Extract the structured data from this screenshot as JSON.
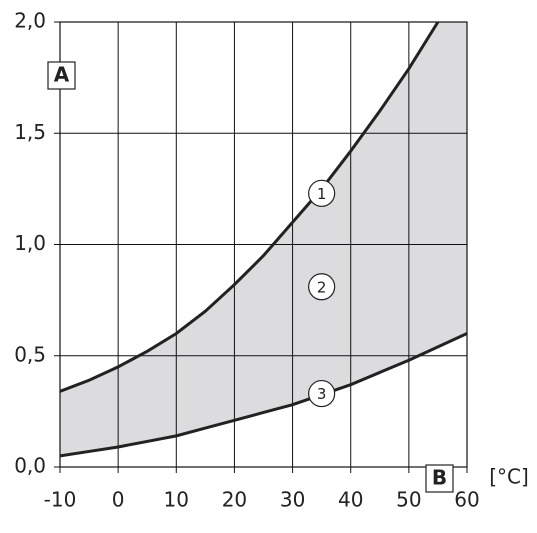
{
  "chart_data": {
    "type": "line",
    "x": [
      -10,
      -5,
      0,
      5,
      10,
      15,
      20,
      25,
      30,
      35,
      40,
      45,
      50,
      55,
      60
    ],
    "series": [
      {
        "name": "1",
        "color": "#222222",
        "values": [
          0.34,
          0.39,
          0.45,
          0.52,
          0.6,
          0.7,
          0.82,
          0.95,
          1.1,
          1.25,
          1.42,
          1.6,
          1.79,
          2.0,
          null
        ]
      },
      {
        "name": "3",
        "color": "#222222",
        "values": [
          0.05,
          0.07,
          0.09,
          0.115,
          0.14,
          0.175,
          0.21,
          0.245,
          0.28,
          0.325,
          0.37,
          0.425,
          0.48,
          0.54,
          0.6
        ]
      }
    ],
    "fill_color": "#dcdcdf",
    "xlim": [
      -10,
      60
    ],
    "ylim": [
      0,
      2
    ],
    "xticks": [
      -10,
      0,
      10,
      20,
      30,
      40,
      50,
      60
    ],
    "yticks": [
      {
        "value": 0,
        "label": "0,0"
      },
      {
        "value": 0.5,
        "label": "0,5"
      },
      {
        "value": 1,
        "label": "1,0"
      },
      {
        "value": 1.5,
        "label": "1,5"
      },
      {
        "value": 2,
        "label": "2,0"
      }
    ],
    "grid": true,
    "y_label": "A",
    "x_label": "B",
    "x_unit": "[°C]",
    "annotations": [
      {
        "text": "1",
        "x": 35,
        "y": 1.23
      },
      {
        "text": "2",
        "x": 35,
        "y": 0.81
      },
      {
        "text": "3",
        "x": 35,
        "y": 0.33
      }
    ]
  }
}
